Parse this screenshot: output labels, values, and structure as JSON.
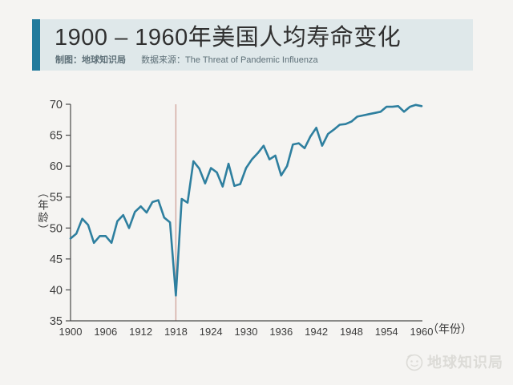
{
  "header": {
    "title": "1900 – 1960年美国人均寿命变化",
    "credit": "制图：地球知识局",
    "source": "数据来源：The Threat of Pandemic Influenza"
  },
  "chart_data": {
    "type": "line",
    "title": "1900 – 1960年美国人均寿命变化",
    "xlabel": "（年份）",
    "ylabel": "（年龄）",
    "xlim": [
      1900,
      1960
    ],
    "ylim": [
      35,
      70
    ],
    "x_ticks": [
      1900,
      1906,
      1912,
      1918,
      1924,
      1930,
      1936,
      1942,
      1948,
      1954,
      1960
    ],
    "y_ticks": [
      35,
      40,
      45,
      50,
      55,
      60,
      65,
      70
    ],
    "grid": false,
    "legend": "none",
    "line_color": "#2e7f9f",
    "axis_color": "#4a4a4a",
    "marker_line": {
      "x": 1918,
      "color": "#d2a79f"
    },
    "x": [
      1900,
      1901,
      1902,
      1903,
      1904,
      1905,
      1906,
      1907,
      1908,
      1909,
      1910,
      1911,
      1912,
      1913,
      1914,
      1915,
      1916,
      1917,
      1918,
      1919,
      1920,
      1921,
      1922,
      1923,
      1924,
      1925,
      1926,
      1927,
      1928,
      1929,
      1930,
      1931,
      1932,
      1933,
      1934,
      1935,
      1936,
      1937,
      1938,
      1939,
      1940,
      1941,
      1942,
      1943,
      1944,
      1945,
      1946,
      1947,
      1948,
      1949,
      1950,
      1951,
      1952,
      1953,
      1954,
      1955,
      1956,
      1957,
      1958,
      1959,
      1960
    ],
    "series": [
      {
        "name": "美国人均寿命",
        "values": [
          48.3,
          49.1,
          51.5,
          50.5,
          47.6,
          48.7,
          48.7,
          47.6,
          51.1,
          52.1,
          50.0,
          52.6,
          53.5,
          52.5,
          54.2,
          54.5,
          51.7,
          50.9,
          39.1,
          54.7,
          54.1,
          60.8,
          59.6,
          57.2,
          59.7,
          59.0,
          56.7,
          60.4,
          56.8,
          57.1,
          59.7,
          61.1,
          62.1,
          63.3,
          61.1,
          61.7,
          58.5,
          60.0,
          63.5,
          63.7,
          62.9,
          64.8,
          66.2,
          63.3,
          65.2,
          65.9,
          66.7,
          66.8,
          67.2,
          68.0,
          68.2,
          68.4,
          68.6,
          68.8,
          69.6,
          69.6,
          69.7,
          68.8,
          69.6,
          69.9,
          69.7
        ]
      }
    ]
  },
  "watermark": {
    "text": "地球知识局"
  },
  "colors": {
    "page_bg": "#f5f4f2",
    "header_bg": "#dfe8ea",
    "accent": "#217a9c",
    "line": "#2e7f9f",
    "marker_line": "#d2a79f"
  }
}
